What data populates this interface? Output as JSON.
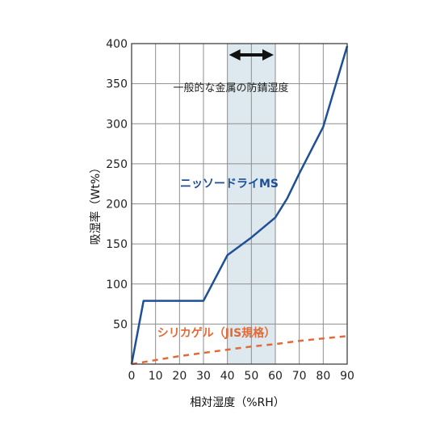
{
  "chart_data": {
    "type": "line",
    "xlabel": "相対湿度（%RH）",
    "ylabel": "吸湿率（Wt%）",
    "xlim": [
      0,
      90
    ],
    "ylim": [
      0,
      400
    ],
    "x_ticks": [
      0,
      10,
      20,
      30,
      40,
      50,
      60,
      70,
      80,
      90
    ],
    "y_ticks": [
      50,
      100,
      150,
      200,
      250,
      300,
      350,
      400
    ],
    "x_tick_labels": [
      "0",
      "10",
      "20",
      "30",
      "40",
      "50",
      "60",
      "70",
      "80",
      "90"
    ],
    "y_tick_labels": [
      "50",
      "100",
      "150",
      "200",
      "250",
      "300",
      "350",
      "400"
    ],
    "grid": true,
    "shaded_band": {
      "x_range": [
        40,
        60
      ],
      "label": "一般的な金属の防錆湿度",
      "color": "#dde9ee"
    },
    "series": [
      {
        "name": "ニッソードライMS",
        "color": "#1f4f96",
        "style": "solid",
        "x": [
          0,
          5,
          30,
          40,
          50,
          60,
          65,
          70,
          80,
          90
        ],
        "y": [
          0,
          79,
          79,
          136,
          158,
          183,
          207,
          238,
          296,
          397
        ]
      },
      {
        "name": "シリカゲル（JIS規格）",
        "color": "#e06a38",
        "style": "dashed",
        "x": [
          0,
          10,
          20,
          30,
          40,
          50,
          60,
          70,
          80,
          90
        ],
        "y": [
          0,
          5,
          10,
          14,
          18,
          22,
          25,
          29,
          32,
          35
        ]
      }
    ]
  }
}
